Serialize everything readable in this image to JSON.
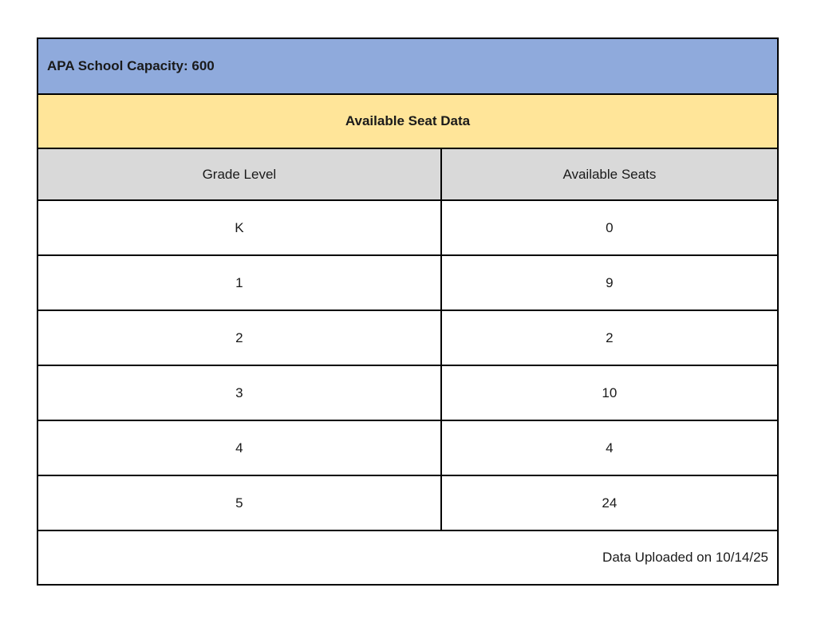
{
  "table": {
    "capacity_header": "APA School Capacity: 600",
    "title": "Available Seat Data",
    "columns": [
      "Grade Level",
      "Available Seats"
    ],
    "rows": [
      {
        "grade": "K",
        "seats": "0"
      },
      {
        "grade": "1",
        "seats": "9"
      },
      {
        "grade": "2",
        "seats": "2"
      },
      {
        "grade": "3",
        "seats": "10"
      },
      {
        "grade": "4",
        "seats": "4"
      },
      {
        "grade": "5",
        "seats": "24"
      }
    ],
    "footer": "Data Uploaded on 10/14/25",
    "colors": {
      "capacity_header_bg": "#8faadc",
      "title_bg": "#ffe599",
      "column_header_bg": "#d9d9d9",
      "row_bg": "#ffffff",
      "border": "#000000",
      "text": "#1a1a1a"
    }
  },
  "chart_data": {
    "type": "table",
    "title": "Available Seat Data",
    "subtitle": "APA School Capacity: 600",
    "columns": [
      "Grade Level",
      "Available Seats"
    ],
    "categories": [
      "K",
      "1",
      "2",
      "3",
      "4",
      "5"
    ],
    "values": [
      0,
      9,
      2,
      10,
      4,
      24
    ],
    "annotations": [
      "Data Uploaded on 10/14/25"
    ]
  }
}
